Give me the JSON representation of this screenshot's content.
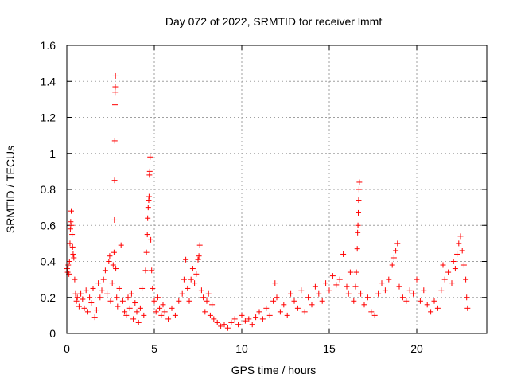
{
  "chart_data": {
    "type": "scatter",
    "title": "Day 072 of 2022, SRMTID for receiver lmmf",
    "xlabel": "GPS time / hours",
    "ylabel": "SRMTID / TECUs",
    "xlim": [
      0,
      24
    ],
    "ylim": [
      0,
      1.6
    ],
    "x_ticks": [
      0,
      5,
      10,
      15,
      20
    ],
    "x_tick_labels": [
      "0",
      "5",
      "10",
      "15",
      "20"
    ],
    "y_ticks": [
      0,
      0.2,
      0.4,
      0.6,
      0.8,
      1.0,
      1.2,
      1.4,
      1.6
    ],
    "y_tick_labels": [
      "0",
      "0.2",
      "0.4",
      "0.6",
      "0.8",
      "1",
      "1.2",
      "1.4",
      "1.6"
    ],
    "grid": true,
    "marker": "+",
    "color": "#ff0000",
    "series": [
      {
        "name": "SRMTID",
        "points": [
          [
            0.02,
            0.36
          ],
          [
            0.05,
            0.34
          ],
          [
            0.08,
            0.38
          ],
          [
            0.12,
            0.33
          ],
          [
            0.15,
            0.4
          ],
          [
            0.18,
            0.5
          ],
          [
            0.2,
            0.58
          ],
          [
            0.22,
            0.62
          ],
          [
            0.25,
            0.68
          ],
          [
            0.28,
            0.6
          ],
          [
            0.3,
            0.55
          ],
          [
            0.33,
            0.48
          ],
          [
            0.36,
            0.44
          ],
          [
            0.4,
            0.42
          ],
          [
            0.45,
            0.3
          ],
          [
            0.5,
            0.22
          ],
          [
            0.55,
            0.18
          ],
          [
            0.6,
            0.2
          ],
          [
            0.7,
            0.15
          ],
          [
            0.8,
            0.22
          ],
          [
            0.9,
            0.19
          ],
          [
            1.0,
            0.14
          ],
          [
            1.1,
            0.24
          ],
          [
            1.2,
            0.12
          ],
          [
            1.3,
            0.2
          ],
          [
            1.4,
            0.17
          ],
          [
            1.5,
            0.25
          ],
          [
            1.6,
            0.09
          ],
          [
            1.7,
            0.13
          ],
          [
            1.8,
            0.28
          ],
          [
            1.9,
            0.2
          ],
          [
            2.0,
            0.24
          ],
          [
            2.1,
            0.3
          ],
          [
            2.2,
            0.35
          ],
          [
            2.3,
            0.22
          ],
          [
            2.4,
            0.4
          ],
          [
            2.45,
            0.43
          ],
          [
            2.5,
            0.18
          ],
          [
            2.6,
            0.28
          ],
          [
            2.65,
            0.38
          ],
          [
            2.7,
            0.45
          ],
          [
            2.72,
            0.63
          ],
          [
            2.73,
            0.85
          ],
          [
            2.74,
            1.07
          ],
          [
            2.75,
            1.27
          ],
          [
            2.76,
            1.34
          ],
          [
            2.77,
            1.37
          ],
          [
            2.78,
            1.43
          ],
          [
            2.8,
            0.36
          ],
          [
            2.85,
            0.2
          ],
          [
            2.9,
            0.15
          ],
          [
            3.0,
            0.25
          ],
          [
            3.1,
            0.49
          ],
          [
            3.2,
            0.18
          ],
          [
            3.3,
            0.12
          ],
          [
            3.4,
            0.1
          ],
          [
            3.5,
            0.2
          ],
          [
            3.6,
            0.14
          ],
          [
            3.7,
            0.22
          ],
          [
            3.8,
            0.08
          ],
          [
            3.9,
            0.17
          ],
          [
            4.0,
            0.12
          ],
          [
            4.1,
            0.06
          ],
          [
            4.2,
            0.14
          ],
          [
            4.3,
            0.25
          ],
          [
            4.4,
            0.1
          ],
          [
            4.5,
            0.35
          ],
          [
            4.55,
            0.45
          ],
          [
            4.6,
            0.55
          ],
          [
            4.62,
            0.64
          ],
          [
            4.65,
            0.7
          ],
          [
            4.68,
            0.74
          ],
          [
            4.7,
            0.76
          ],
          [
            4.72,
            0.88
          ],
          [
            4.74,
            0.9
          ],
          [
            4.76,
            0.98
          ],
          [
            4.8,
            0.52
          ],
          [
            4.85,
            0.35
          ],
          [
            4.9,
            0.25
          ],
          [
            5.0,
            0.18
          ],
          [
            5.1,
            0.12
          ],
          [
            5.2,
            0.2
          ],
          [
            5.3,
            0.14
          ],
          [
            5.4,
            0.1
          ],
          [
            5.5,
            0.16
          ],
          [
            5.6,
            0.12
          ],
          [
            5.8,
            0.08
          ],
          [
            6.0,
            0.14
          ],
          [
            6.2,
            0.1
          ],
          [
            6.4,
            0.18
          ],
          [
            6.6,
            0.22
          ],
          [
            6.7,
            0.3
          ],
          [
            6.8,
            0.41
          ],
          [
            6.9,
            0.25
          ],
          [
            7.0,
            0.18
          ],
          [
            7.1,
            0.3
          ],
          [
            7.2,
            0.36
          ],
          [
            7.3,
            0.28
          ],
          [
            7.4,
            0.33
          ],
          [
            7.5,
            0.41
          ],
          [
            7.55,
            0.43
          ],
          [
            7.6,
            0.49
          ],
          [
            7.7,
            0.24
          ],
          [
            7.8,
            0.2
          ],
          [
            7.9,
            0.12
          ],
          [
            8.0,
            0.18
          ],
          [
            8.1,
            0.22
          ],
          [
            8.2,
            0.1
          ],
          [
            8.3,
            0.16
          ],
          [
            8.4,
            0.08
          ],
          [
            8.6,
            0.06
          ],
          [
            8.8,
            0.04
          ],
          [
            9.0,
            0.05
          ],
          [
            9.2,
            0.03
          ],
          [
            9.4,
            0.06
          ],
          [
            9.6,
            0.08
          ],
          [
            9.8,
            0.05
          ],
          [
            10.0,
            0.1
          ],
          [
            10.2,
            0.07
          ],
          [
            10.4,
            0.08
          ],
          [
            10.6,
            0.05
          ],
          [
            10.8,
            0.09
          ],
          [
            11.0,
            0.12
          ],
          [
            11.2,
            0.08
          ],
          [
            11.4,
            0.14
          ],
          [
            11.6,
            0.1
          ],
          [
            11.8,
            0.18
          ],
          [
            11.9,
            0.28
          ],
          [
            12.0,
            0.2
          ],
          [
            12.2,
            0.12
          ],
          [
            12.4,
            0.16
          ],
          [
            12.6,
            0.1
          ],
          [
            12.8,
            0.22
          ],
          [
            13.0,
            0.18
          ],
          [
            13.2,
            0.14
          ],
          [
            13.4,
            0.24
          ],
          [
            13.6,
            0.12
          ],
          [
            13.8,
            0.2
          ],
          [
            14.0,
            0.16
          ],
          [
            14.2,
            0.26
          ],
          [
            14.4,
            0.22
          ],
          [
            14.6,
            0.18
          ],
          [
            14.8,
            0.28
          ],
          [
            15.0,
            0.24
          ],
          [
            15.2,
            0.32
          ],
          [
            15.4,
            0.27
          ],
          [
            15.6,
            0.3
          ],
          [
            15.8,
            0.44
          ],
          [
            16.0,
            0.26
          ],
          [
            16.1,
            0.22
          ],
          [
            16.2,
            0.34
          ],
          [
            16.4,
            0.18
          ],
          [
            16.5,
            0.26
          ],
          [
            16.55,
            0.34
          ],
          [
            16.6,
            0.47
          ],
          [
            16.62,
            0.56
          ],
          [
            16.64,
            0.6
          ],
          [
            16.66,
            0.67
          ],
          [
            16.68,
            0.74
          ],
          [
            16.7,
            0.8
          ],
          [
            16.72,
            0.84
          ],
          [
            16.8,
            0.22
          ],
          [
            17.0,
            0.16
          ],
          [
            17.2,
            0.2
          ],
          [
            17.4,
            0.12
          ],
          [
            17.6,
            0.1
          ],
          [
            17.8,
            0.22
          ],
          [
            18.0,
            0.28
          ],
          [
            18.2,
            0.24
          ],
          [
            18.4,
            0.3
          ],
          [
            18.6,
            0.38
          ],
          [
            18.7,
            0.42
          ],
          [
            18.8,
            0.46
          ],
          [
            18.9,
            0.5
          ],
          [
            19.0,
            0.26
          ],
          [
            19.2,
            0.2
          ],
          [
            19.4,
            0.18
          ],
          [
            19.6,
            0.24
          ],
          [
            19.8,
            0.22
          ],
          [
            20.0,
            0.3
          ],
          [
            20.2,
            0.18
          ],
          [
            20.4,
            0.24
          ],
          [
            20.6,
            0.16
          ],
          [
            20.8,
            0.12
          ],
          [
            21.0,
            0.18
          ],
          [
            21.2,
            0.14
          ],
          [
            21.4,
            0.24
          ],
          [
            21.5,
            0.38
          ],
          [
            21.6,
            0.3
          ],
          [
            21.8,
            0.34
          ],
          [
            22.0,
            0.28
          ],
          [
            22.1,
            0.4
          ],
          [
            22.2,
            0.36
          ],
          [
            22.3,
            0.44
          ],
          [
            22.4,
            0.5
          ],
          [
            22.5,
            0.54
          ],
          [
            22.6,
            0.46
          ],
          [
            22.7,
            0.38
          ],
          [
            22.8,
            0.3
          ],
          [
            22.85,
            0.2
          ],
          [
            22.9,
            0.14
          ]
        ]
      }
    ]
  }
}
